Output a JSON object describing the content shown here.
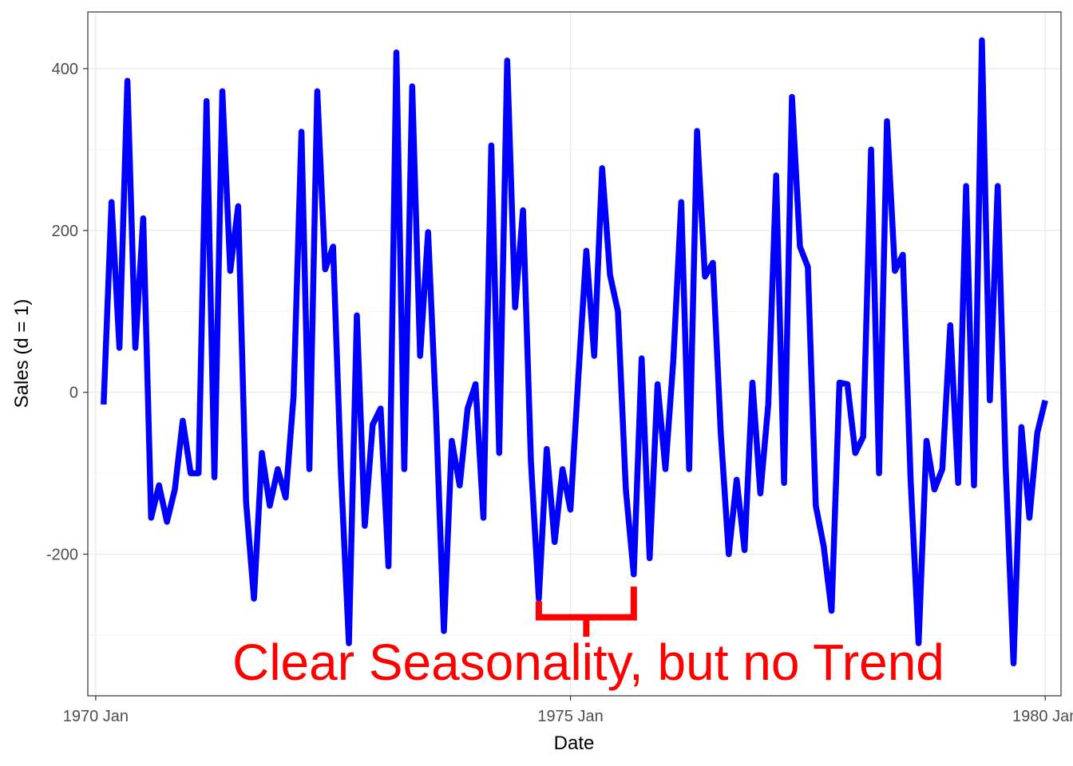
{
  "chart_data": {
    "type": "line",
    "title": "",
    "xlabel": "Date",
    "ylabel": "Sales (d = 1)",
    "x_range": [
      "1969-12",
      "1980-03"
    ],
    "ylim": [
      -375,
      470
    ],
    "x_ticks": [
      {
        "value": "1970-01",
        "label": "1970 Jan"
      },
      {
        "value": "1975-01",
        "label": "1975 Jan"
      },
      {
        "value": "1980-01",
        "label": "1980 Jan"
      }
    ],
    "y_ticks": [
      -200,
      0,
      200,
      400
    ],
    "y_minor_ticks": [
      -300,
      -100,
      100,
      300
    ],
    "grid": true,
    "legend": "none",
    "series": [
      {
        "color": "#0000ff",
        "x": [
          "1970-02",
          "1970-03",
          "1970-04",
          "1970-05",
          "1970-06",
          "1970-07",
          "1970-08",
          "1970-09",
          "1970-10",
          "1970-11",
          "1970-12",
          "1971-01",
          "1971-02",
          "1971-03",
          "1971-04",
          "1971-05",
          "1971-06",
          "1971-07",
          "1971-08",
          "1971-09",
          "1971-10",
          "1971-11",
          "1971-12",
          "1972-01",
          "1972-02",
          "1972-03",
          "1972-04",
          "1972-05",
          "1972-06",
          "1972-07",
          "1972-08",
          "1972-09",
          "1972-10",
          "1972-11",
          "1972-12",
          "1973-01",
          "1973-02",
          "1973-03",
          "1973-04",
          "1973-05",
          "1973-06",
          "1973-07",
          "1973-08",
          "1973-09",
          "1973-10",
          "1973-11",
          "1973-12",
          "1974-01",
          "1974-02",
          "1974-03",
          "1974-04",
          "1974-05",
          "1974-06",
          "1974-07",
          "1974-08",
          "1974-09",
          "1974-10",
          "1974-11",
          "1974-12",
          "1975-01",
          "1975-02",
          "1975-03",
          "1975-04",
          "1975-05",
          "1975-06",
          "1975-07",
          "1975-08",
          "1975-09",
          "1975-10",
          "1975-11",
          "1975-12",
          "1976-01",
          "1976-02",
          "1976-03",
          "1976-04",
          "1976-05",
          "1976-06",
          "1976-07",
          "1976-08",
          "1976-09",
          "1976-10",
          "1976-11",
          "1976-12",
          "1977-01",
          "1977-02",
          "1977-03",
          "1977-04",
          "1977-05",
          "1977-06",
          "1977-07",
          "1977-08",
          "1977-09",
          "1977-10",
          "1977-11",
          "1977-12",
          "1978-01",
          "1978-02",
          "1978-03",
          "1978-04",
          "1978-05",
          "1978-06",
          "1978-07",
          "1978-08",
          "1978-09",
          "1978-10",
          "1978-11",
          "1978-12",
          "1979-01",
          "1979-02",
          "1979-03",
          "1979-04",
          "1979-05",
          "1979-06",
          "1979-07",
          "1979-08",
          "1979-09",
          "1979-10",
          "1979-11",
          "1979-12",
          "1980-01"
        ],
        "values": [
          -15,
          235,
          55,
          385,
          55,
          215,
          -155,
          -115,
          -160,
          -120,
          -35,
          -100,
          -100,
          360,
          -105,
          372,
          150,
          230,
          -135,
          -255,
          -75,
          -140,
          -95,
          -130,
          -5,
          322,
          -95,
          372,
          152,
          180,
          -100,
          -310,
          95,
          -165,
          -40,
          -20,
          -215,
          420,
          -95,
          378,
          45,
          198,
          -25,
          -295,
          -60,
          -115,
          -20,
          10,
          -155,
          305,
          -75,
          410,
          105,
          225,
          -85,
          -255,
          -70,
          -185,
          -95,
          -145,
          20,
          175,
          45,
          277,
          145,
          100,
          -120,
          -225,
          42,
          -205,
          10,
          -95,
          40,
          235,
          -95,
          323,
          143,
          160,
          -50,
          -200,
          -108,
          -195,
          12,
          -125,
          -15,
          268,
          -112,
          365,
          180,
          155,
          -140,
          -190,
          -270,
          12,
          10,
          -75,
          -55,
          300,
          -100,
          335,
          150,
          170,
          -110,
          -310,
          -60,
          -120,
          -95,
          83,
          -112,
          255,
          -115,
          435,
          -10,
          255,
          -90,
          -335,
          -43,
          -155,
          -50,
          -10
        ]
      }
    ],
    "annotations": [
      {
        "text": "Clear Seasonality, but no Trend",
        "color": "#ff0000"
      }
    ],
    "bracket": {
      "x_start": "1974-09",
      "x_end": "1975-09",
      "y_bar": -278,
      "y_tip_start": -258,
      "y_tip_end": -240,
      "y_stem": -302,
      "color": "#ff0000"
    }
  }
}
